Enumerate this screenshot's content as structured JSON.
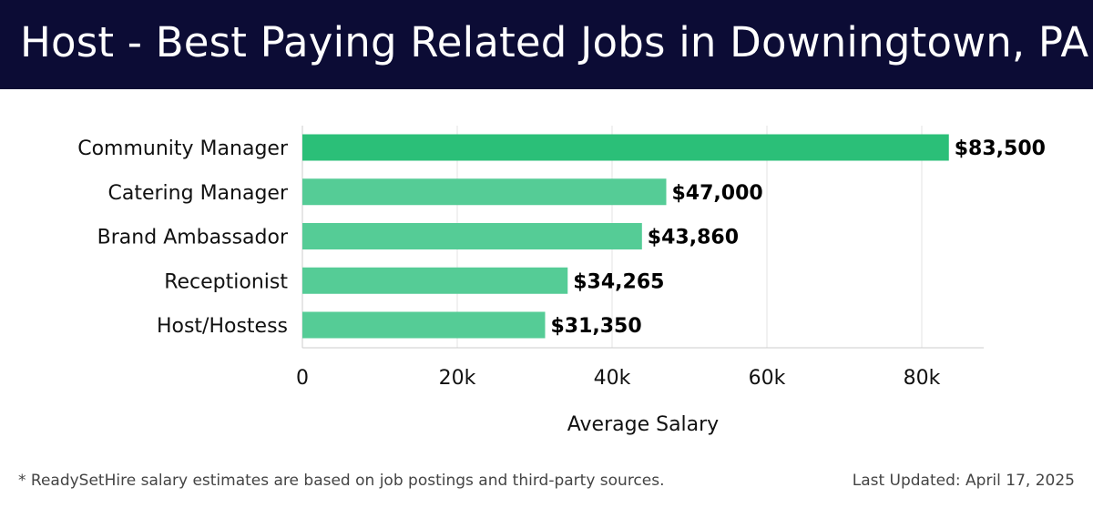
{
  "header": {
    "title": "Host - Best Paying Related Jobs in Downingtown, PA"
  },
  "footer": {
    "note": "* ReadySetHire salary estimates are based on job postings and third-party sources.",
    "updated": "Last Updated: April 17, 2025"
  },
  "colors": {
    "header_bg": "#0c0c35",
    "top_bar": "#2bbf78",
    "bar": "#55cc96",
    "grid": "#e3e3e3",
    "axis": "#cccccc"
  },
  "chart_data": {
    "type": "bar",
    "orientation": "horizontal",
    "title": "Host - Best Paying Related Jobs in Downingtown, PA",
    "categories": [
      "Community Manager",
      "Catering Manager",
      "Brand Ambassador",
      "Receptionist",
      "Host/Hostess"
    ],
    "values": [
      83500,
      47000,
      43860,
      34265,
      31350
    ],
    "value_labels": [
      "$83,500",
      "$47,000",
      "$43,860",
      "$34,265",
      "$31,350"
    ],
    "xlabel": "Average Salary",
    "ylabel": "",
    "xlim": [
      0,
      88000
    ],
    "xticks": [
      0,
      20000,
      40000,
      60000,
      80000
    ],
    "xtick_labels": [
      "0",
      "20k",
      "40k",
      "60k",
      "80k"
    ],
    "grid": true,
    "legend": false
  }
}
